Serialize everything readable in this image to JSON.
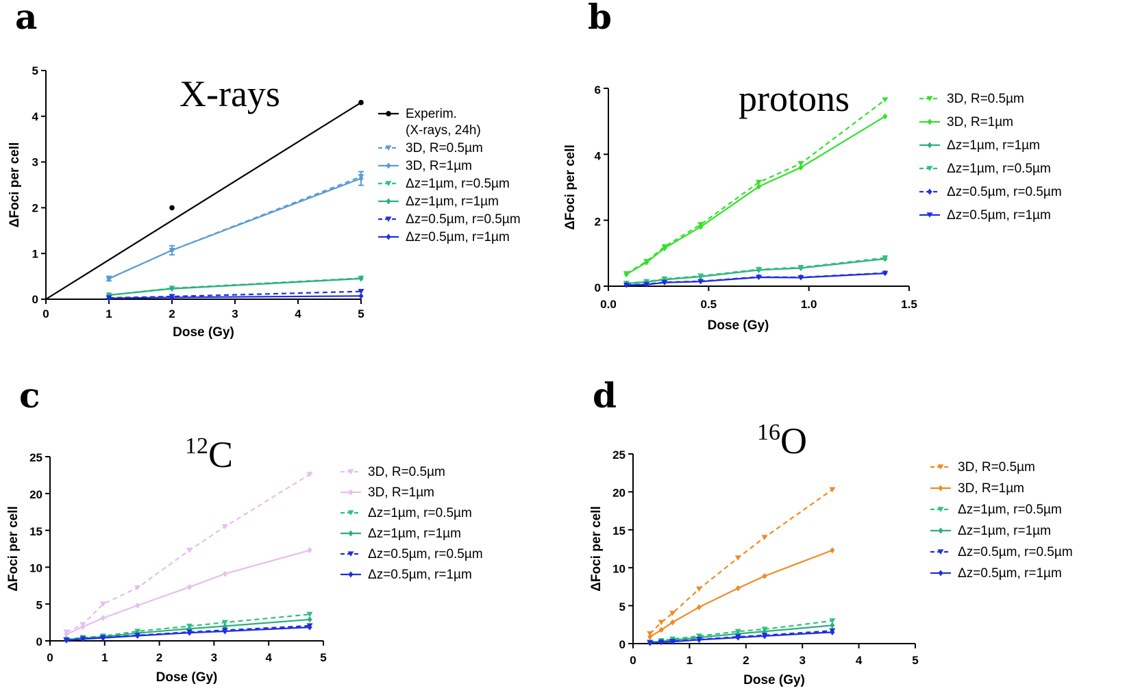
{
  "chart_data": [
    {
      "panel": "a",
      "title": "X-rays",
      "type": "line",
      "xlabel": "Dose (Gy)",
      "ylabel": "ΔFoci per cell",
      "xlim": [
        0,
        5
      ],
      "ylim": [
        0,
        5
      ],
      "xticks": [
        0,
        1,
        2,
        3,
        4,
        5
      ],
      "xtick_labels": [
        "0",
        "1",
        "2",
        "3",
        "4",
        "5"
      ],
      "yticks": [
        0,
        1,
        2,
        3,
        4,
        5
      ],
      "ytick_labels": [
        "0",
        "1",
        "2",
        "3",
        "4",
        "5"
      ],
      "xscale": "categorical-1-2-5",
      "legend_position": "right",
      "series": [
        {
          "name": "Experim.",
          "name2": "(X-rays, 24h)",
          "color": "#000000",
          "dashed": false,
          "marker": "dot",
          "x": [
            0,
            2,
            5
          ],
          "y": [
            0,
            2.0,
            4.3
          ],
          "fit": [
            [
              0,
              0
            ],
            [
              5,
              4.3
            ]
          ],
          "points": [
            [
              2,
              2.0
            ],
            [
              5,
              4.3
            ]
          ]
        },
        {
          "name": "3D, R=0.5µm",
          "color": "#5b9bd5",
          "dashed": true,
          "marker": "tri",
          "x": [
            1,
            2,
            5
          ],
          "y": [
            0.45,
            1.07,
            2.68
          ]
        },
        {
          "name": "3D, R=1µm",
          "color": "#5b9bd5",
          "dashed": false,
          "marker": "diamond",
          "x": [
            1,
            2,
            5
          ],
          "y": [
            0.45,
            1.07,
            2.64
          ],
          "err": [
            0.05,
            0.1,
            0.15
          ]
        },
        {
          "name": "Δz=1µm, r=0.5µm",
          "color": "#2ec27e",
          "dashed": true,
          "marker": "tri",
          "x": [
            1,
            2,
            5
          ],
          "y": [
            0.09,
            0.24,
            0.46
          ]
        },
        {
          "name": "Δz=1µm, r=1µm",
          "color": "#2ab07a",
          "dashed": false,
          "marker": "diamond",
          "x": [
            1,
            2,
            5
          ],
          "y": [
            0.09,
            0.23,
            0.45
          ]
        },
        {
          "name": "Δz=0.5µm, r=0.5µm",
          "color": "#1f2ee0",
          "dashed": true,
          "marker": "tri",
          "x": [
            1,
            2,
            5
          ],
          "y": [
            0.03,
            0.06,
            0.17
          ]
        },
        {
          "name": "Δz=0.5µm, r=1µm",
          "color": "#1f2ee0",
          "dashed": false,
          "marker": "diamond",
          "x": [
            1,
            2,
            5
          ],
          "y": [
            0.02,
            0.04,
            0.07
          ]
        }
      ]
    },
    {
      "panel": "b",
      "title": "protons",
      "type": "line",
      "xlabel": "Dose (Gy)",
      "ylabel": "ΔFoci per cell",
      "xlim": [
        0,
        1.5
      ],
      "ylim": [
        0,
        6
      ],
      "xticks": [
        0,
        0.5,
        1.0,
        1.5
      ],
      "xtick_labels": [
        "0.0",
        "0.5",
        "1.0",
        "1.5"
      ],
      "yticks": [
        0,
        2,
        4,
        6
      ],
      "ytick_labels": [
        "0",
        "2",
        "4",
        "6"
      ],
      "legend_position": "right",
      "series": [
        {
          "name": "3D, R=0.5µm",
          "color": "#33e02a",
          "dashed": true,
          "marker": "tri",
          "x": [
            0.09,
            0.19,
            0.28,
            0.46,
            0.75,
            0.96,
            1.38
          ],
          "y": [
            0.38,
            0.75,
            1.2,
            1.87,
            3.15,
            3.72,
            5.65
          ]
        },
        {
          "name": "3D, R=1µm",
          "color": "#33e02a",
          "dashed": false,
          "marker": "diamond",
          "x": [
            0.09,
            0.19,
            0.28,
            0.46,
            0.75,
            0.96,
            1.38
          ],
          "y": [
            0.36,
            0.72,
            1.15,
            1.8,
            3.02,
            3.6,
            5.15
          ]
        },
        {
          "name": "Δz=1µm, r=1µm",
          "color": "#2ab07a",
          "dashed": false,
          "marker": "diamond",
          "x": [
            0.09,
            0.19,
            0.28,
            0.46,
            0.75,
            0.96,
            1.38
          ],
          "y": [
            0.08,
            0.13,
            0.2,
            0.29,
            0.49,
            0.55,
            0.83
          ]
        },
        {
          "name": "Δz=1µm, r=0.5µm",
          "color": "#2ec27e",
          "dashed": true,
          "marker": "tri",
          "x": [
            0.09,
            0.19,
            0.28,
            0.46,
            0.75,
            0.96,
            1.38
          ],
          "y": [
            0.09,
            0.14,
            0.22,
            0.31,
            0.51,
            0.57,
            0.86
          ]
        },
        {
          "name": "Δz=0.5µm, r=0.5µm",
          "color": "#1f2ee0",
          "dashed": true,
          "marker": "diamond",
          "x": [
            0.09,
            0.19,
            0.28,
            0.46,
            0.75,
            0.96,
            1.38
          ],
          "y": [
            0.04,
            0.06,
            0.12,
            0.15,
            0.28,
            0.27,
            0.4
          ]
        },
        {
          "name": "Δz=0.5µm, r=1µm",
          "color": "#1f2ee0",
          "dashed": false,
          "marker": "tri",
          "x": [
            0.09,
            0.19,
            0.28,
            0.46,
            0.75,
            0.96,
            1.38
          ],
          "y": [
            0.03,
            0.05,
            0.11,
            0.14,
            0.27,
            0.26,
            0.39
          ]
        }
      ]
    },
    {
      "panel": "c",
      "title": "C",
      "title_sup": "12",
      "type": "line",
      "xlabel": "Dose (Gy)",
      "ylabel": "ΔFoci per cell",
      "xlim": [
        0,
        5
      ],
      "ylim": [
        0,
        25
      ],
      "xticks": [
        0,
        1,
        2,
        3,
        4,
        5
      ],
      "xtick_labels": [
        "0",
        "1",
        "2",
        "3",
        "4",
        "5"
      ],
      "yticks": [
        0,
        5,
        10,
        15,
        20,
        25
      ],
      "ytick_labels": [
        "0",
        "5",
        "10",
        "15",
        "20",
        "25"
      ],
      "legend_position": "right",
      "series": [
        {
          "name": "3D, R=0.5µm",
          "color": "#e7bdf0",
          "dashed": true,
          "marker": "tri",
          "x": [
            0.3,
            0.6,
            0.97,
            1.6,
            2.55,
            3.2,
            4.75
          ],
          "y": [
            1.2,
            2.2,
            5.0,
            7.2,
            12.3,
            15.5,
            22.6
          ]
        },
        {
          "name": "3D, R=1µm",
          "color": "#e7bdf0",
          "dashed": false,
          "marker": "diamond",
          "x": [
            0.3,
            0.6,
            0.97,
            1.6,
            2.55,
            3.2,
            4.75
          ],
          "y": [
            0.9,
            1.9,
            3.1,
            4.8,
            7.3,
            9.1,
            12.3
          ]
        },
        {
          "name": "Δz=1µm, r=0.5µm",
          "color": "#2ec27e",
          "dashed": true,
          "marker": "tri",
          "x": [
            0.3,
            0.6,
            0.97,
            1.6,
            2.55,
            3.2,
            4.75
          ],
          "y": [
            0.2,
            0.45,
            0.65,
            1.3,
            2.0,
            2.5,
            3.6
          ]
        },
        {
          "name": "Δz=1µm, r=1µm",
          "color": "#2ab07a",
          "dashed": false,
          "marker": "diamond",
          "x": [
            0.3,
            0.6,
            0.97,
            1.6,
            2.55,
            3.2,
            4.75
          ],
          "y": [
            0.15,
            0.35,
            0.55,
            1.05,
            1.65,
            2.0,
            2.9
          ]
        },
        {
          "name": "Δz=0.5µm, r=0.5µm",
          "color": "#1f2ee0",
          "dashed": true,
          "marker": "tri",
          "x": [
            0.3,
            0.6,
            0.97,
            1.6,
            2.55,
            3.2,
            4.75
          ],
          "y": [
            0.1,
            0.28,
            0.45,
            0.75,
            1.2,
            1.45,
            2.05
          ]
        },
        {
          "name": "Δz=0.5µm, r=1µm",
          "color": "#1f2ee0",
          "dashed": false,
          "marker": "diamond",
          "x": [
            0.3,
            0.6,
            0.97,
            1.6,
            2.55,
            3.2,
            4.75
          ],
          "y": [
            0.08,
            0.25,
            0.4,
            0.7,
            1.1,
            1.3,
            1.85
          ]
        }
      ]
    },
    {
      "panel": "d",
      "title": "O",
      "title_sup": "16",
      "type": "line",
      "xlabel": "Dose (Gy)",
      "ylabel": "ΔFoci per cell",
      "xlim": [
        0,
        5
      ],
      "ylim": [
        0,
        25
      ],
      "xticks": [
        0,
        1,
        2,
        3,
        4,
        5
      ],
      "xtick_labels": [
        "0",
        "1",
        "2",
        "3",
        "4",
        "5"
      ],
      "yticks": [
        0,
        5,
        10,
        15,
        20,
        25
      ],
      "ytick_labels": [
        "0",
        "5",
        "10",
        "15",
        "20",
        "25"
      ],
      "legend_position": "right",
      "series": [
        {
          "name": "3D, R=0.5µm",
          "color": "#f08a24",
          "dashed": true,
          "marker": "tri",
          "x": [
            0.3,
            0.5,
            0.7,
            1.17,
            1.86,
            2.33,
            3.53
          ],
          "y": [
            1.3,
            2.8,
            4.0,
            7.2,
            11.3,
            14.0,
            20.3
          ]
        },
        {
          "name": "3D, R=1µm",
          "color": "#f08a24",
          "dashed": false,
          "marker": "diamond",
          "x": [
            0.3,
            0.5,
            0.7,
            1.17,
            1.86,
            2.33,
            3.53
          ],
          "y": [
            0.9,
            1.8,
            2.8,
            4.8,
            7.3,
            8.9,
            12.3
          ]
        },
        {
          "name": "Δz=1µm, r=0.5µm",
          "color": "#2ec27e",
          "dashed": true,
          "marker": "tri",
          "x": [
            0.3,
            0.5,
            0.7,
            1.17,
            1.86,
            2.33,
            3.53
          ],
          "y": [
            0.2,
            0.4,
            0.6,
            1.0,
            1.6,
            1.9,
            3.0
          ]
        },
        {
          "name": "Δz=1µm, r=1µm",
          "color": "#2ab07a",
          "dashed": false,
          "marker": "diamond",
          "x": [
            0.3,
            0.5,
            0.7,
            1.17,
            1.86,
            2.33,
            3.53
          ],
          "y": [
            0.15,
            0.3,
            0.45,
            0.8,
            1.3,
            1.6,
            2.4
          ]
        },
        {
          "name": "Δz=0.5µm, r=0.5µm",
          "color": "#1f2ee0",
          "dashed": true,
          "marker": "tri",
          "x": [
            0.3,
            0.5,
            0.7,
            1.17,
            1.86,
            2.33,
            3.53
          ],
          "y": [
            0.1,
            0.2,
            0.3,
            0.55,
            0.9,
            1.1,
            1.7
          ]
        },
        {
          "name": "Δz=0.5µm, r=1µm",
          "color": "#1f2ee0",
          "dashed": false,
          "marker": "diamond",
          "x": [
            0.3,
            0.5,
            0.7,
            1.17,
            1.86,
            2.33,
            3.53
          ],
          "y": [
            0.08,
            0.18,
            0.25,
            0.5,
            0.8,
            1.0,
            1.5
          ]
        }
      ]
    }
  ]
}
